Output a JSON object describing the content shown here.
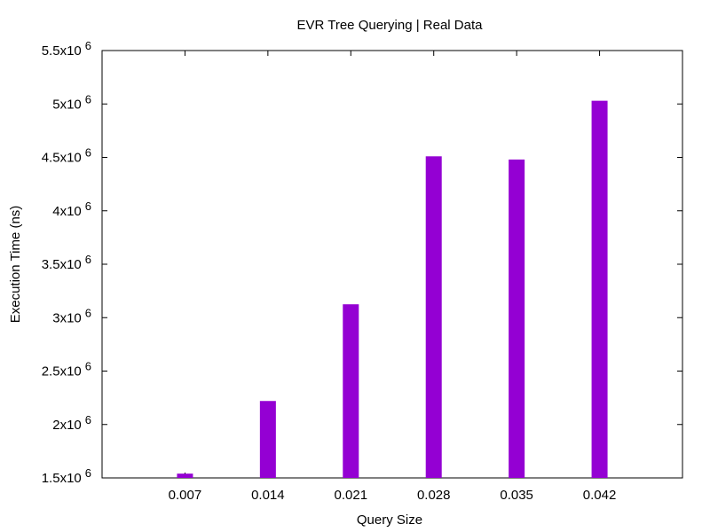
{
  "chart_data": {
    "type": "bar",
    "title": "EVR Tree Querying | Real Data",
    "xlabel": "Query Size",
    "ylabel": "Execution Time (ns)",
    "categories": [
      "0.007",
      "0.014",
      "0.021",
      "0.028",
      "0.035",
      "0.042"
    ],
    "x": [
      0.007,
      0.014,
      0.021,
      0.028,
      0.035,
      0.042
    ],
    "xlim": [
      0.0,
      0.049
    ],
    "values": [
      1540000,
      2220000,
      3125000,
      4510000,
      4480000,
      5030000
    ],
    "ylim": [
      1500000,
      5500000
    ],
    "yticks": [
      {
        "value": 1500000,
        "mantissa": "1.5x10",
        "exponent": "6"
      },
      {
        "value": 2000000,
        "mantissa": "2x10",
        "exponent": "6"
      },
      {
        "value": 2500000,
        "mantissa": "2.5x10",
        "exponent": "6"
      },
      {
        "value": 3000000,
        "mantissa": "3x10",
        "exponent": "6"
      },
      {
        "value": 3500000,
        "mantissa": "3.5x10",
        "exponent": "6"
      },
      {
        "value": 4000000,
        "mantissa": "4x10",
        "exponent": "6"
      },
      {
        "value": 4500000,
        "mantissa": "4.5x10",
        "exponent": "6"
      },
      {
        "value": 5000000,
        "mantissa": "5x10",
        "exponent": "6"
      },
      {
        "value": 5500000,
        "mantissa": "5.5x10",
        "exponent": "6"
      }
    ],
    "grid": false,
    "legend": "none",
    "bar_color": "#9400D3",
    "axis_color": "#000000"
  }
}
